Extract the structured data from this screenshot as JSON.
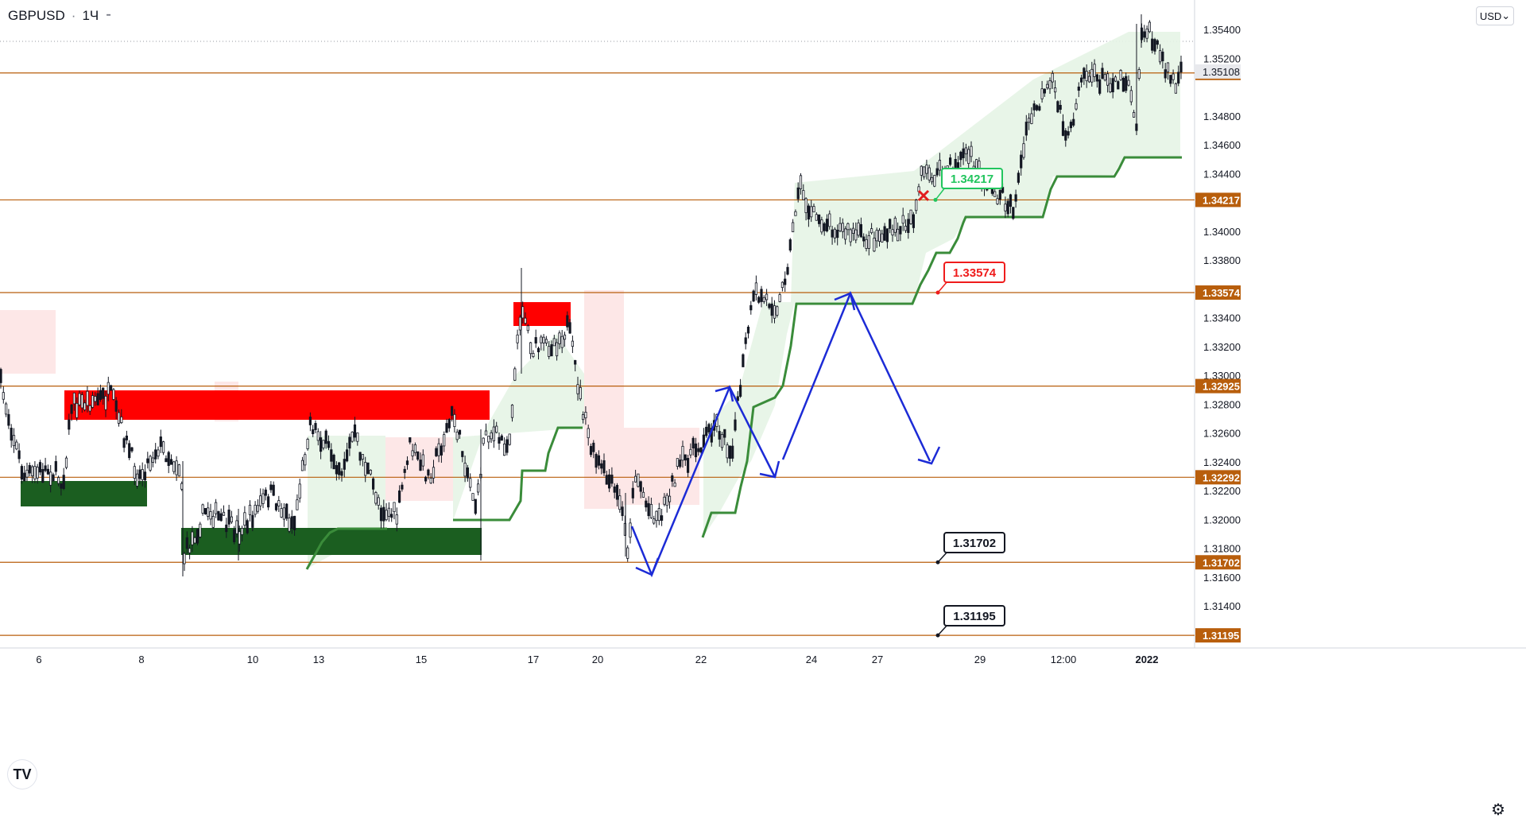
{
  "header": {
    "symbol": "GBPUSD",
    "separator": "·",
    "interval": "1Ч",
    "more": "⁃"
  },
  "currency_button": {
    "label": "USD",
    "caret": "⌄"
  },
  "logo": {
    "text": "TV"
  },
  "settings_icon": "⚙",
  "chart_data": {
    "type": "candlestick",
    "title": "GBPUSD · 1Ч",
    "ylim": [
      1.31,
      1.3552
    ],
    "y_ticks": [
      "1.35400",
      "1.35200",
      "1.34800",
      "1.34600",
      "1.34400",
      "1.34000",
      "1.33800",
      "1.33400",
      "1.33200",
      "1.33000",
      "1.32800",
      "1.32600",
      "1.32400",
      "1.32200",
      "1.32000",
      "1.31800",
      "1.31600",
      "1.31400"
    ],
    "x_ticks": [
      "6",
      "8",
      "10",
      "13",
      "15",
      "17",
      "20",
      "22",
      "24",
      "27",
      "29",
      "12:00",
      "2022"
    ],
    "horizontal_levels": [
      {
        "value": 1.35098,
        "label": "1.35098",
        "color": "#b85e0c"
      },
      {
        "value": 1.34217,
        "label": "1.34217",
        "color": "#b85e0c"
      },
      {
        "value": 1.33574,
        "label": "1.33574",
        "color": "#b85e0c"
      },
      {
        "value": 1.32925,
        "label": "1.32925",
        "color": "#b85e0c"
      },
      {
        "value": 1.32292,
        "label": "1.32292",
        "color": "#b85e0c"
      },
      {
        "value": 1.31702,
        "label": "1.31702",
        "color": "#b85e0c"
      },
      {
        "value": 1.31195,
        "label": "1.31195",
        "color": "#b85e0c"
      }
    ],
    "last_price": {
      "value": 1.35108,
      "label": "1.35108"
    },
    "callouts": [
      {
        "value": 1.34217,
        "label": "1.34217",
        "color": "#22c55e"
      },
      {
        "value": 1.33574,
        "label": "1.33574",
        "color": "#ef1c1c"
      },
      {
        "value": 1.31702,
        "label": "1.31702",
        "color": "#131722"
      },
      {
        "value": 1.31195,
        "label": "1.31195",
        "color": "#131722"
      }
    ],
    "path_key": [
      {
        "value": 1.3248
      },
      {
        "value": 1.3295
      },
      {
        "value": 1.3233
      },
      {
        "value": 1.3357
      },
      {
        "value": 1.3243
      }
    ],
    "colors": {
      "up": "#131722",
      "down": "#131722",
      "level": "#b85e0c",
      "supertrend_up": "#3a8c3a",
      "supertrend_down": "#b82525",
      "zone_red": "#ff0000",
      "zone_green": "#1b5e20",
      "arrows": "#1c2bd6"
    }
  }
}
